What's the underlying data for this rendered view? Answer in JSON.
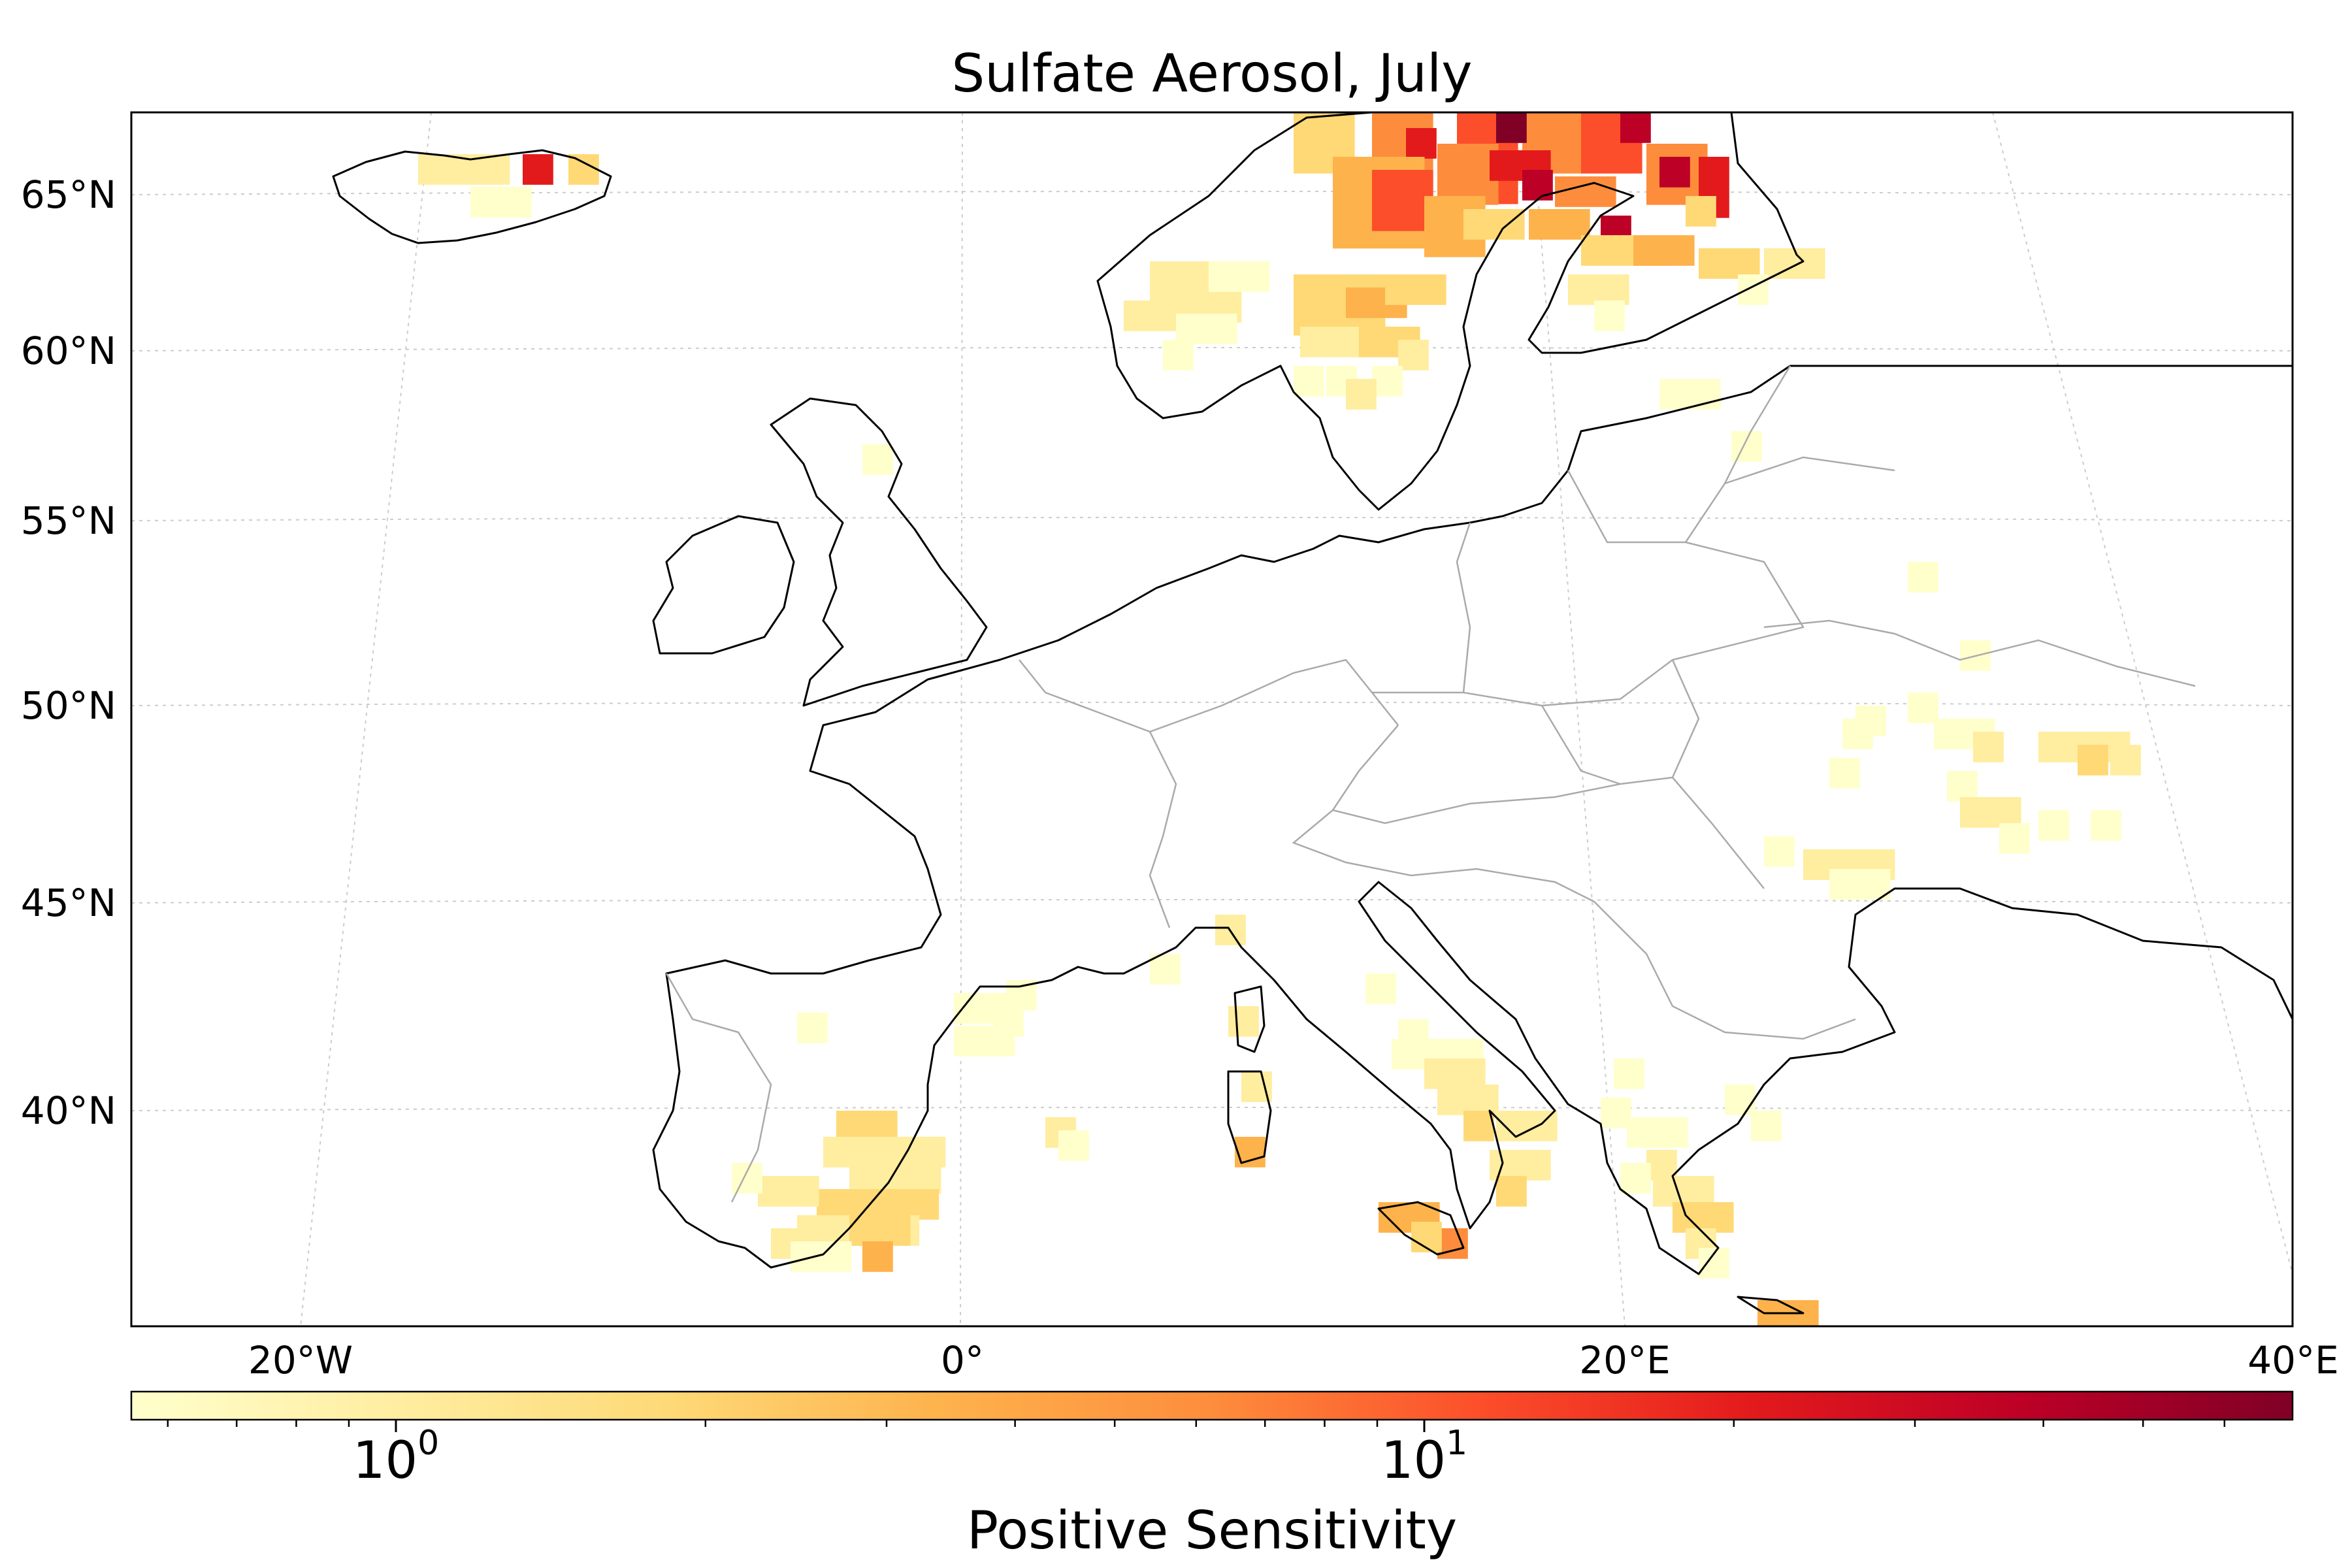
{
  "title": "Sulfate Aerosol, July",
  "map": {
    "projection": "conic",
    "lat_ticks": [
      "65°N",
      "60°N",
      "55°N",
      "50°N",
      "45°N",
      "40°N"
    ],
    "lon_ticks": [
      "20°W",
      "0°",
      "20°E",
      "40°E"
    ],
    "gridlines": true,
    "coastline_color": "#000000",
    "border_color": "#aaaaaa",
    "grid_color": "#cccccc"
  },
  "colorbar": {
    "label": "Positive Sensitivity",
    "cmap": "YlOrRd",
    "scale": "log",
    "ticks": [
      {
        "base": "10",
        "exp": "0"
      },
      {
        "base": "10",
        "exp": "1"
      }
    ],
    "colors": [
      "#ffffcc",
      "#ffeda0",
      "#fed976",
      "#feb24c",
      "#fd8d3c",
      "#fc4e2a",
      "#e31a1c",
      "#bd0026",
      "#800026"
    ]
  }
}
